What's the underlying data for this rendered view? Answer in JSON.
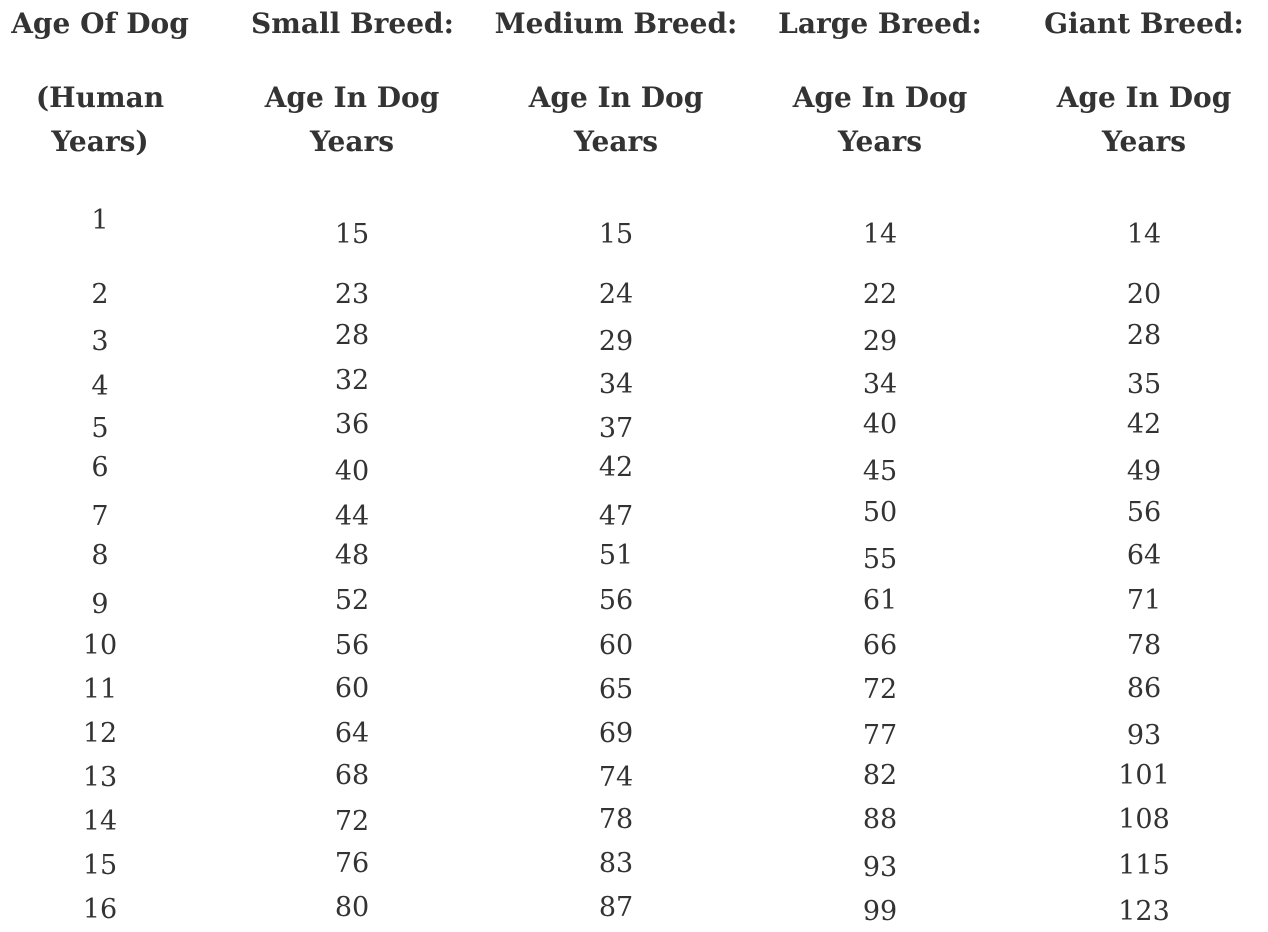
{
  "columns": [
    {
      "title": "Age Of Dog",
      "subtitle": "(Human Years)"
    },
    {
      "title": "Small Breed:",
      "subtitle": "Age In Dog Years"
    },
    {
      "title": "Medium Breed:",
      "subtitle": "Age In Dog Years"
    },
    {
      "title": "Large Breed:",
      "subtitle": "Age In Dog Years"
    },
    {
      "title": "Giant Breed:",
      "subtitle": "Age In Dog Years"
    }
  ],
  "rows": [
    [
      "1",
      "15",
      "15",
      "14",
      "14"
    ],
    [
      "2",
      "23",
      "24",
      "22",
      "20"
    ],
    [
      "3",
      "28",
      "29",
      "29",
      "28"
    ],
    [
      "4",
      "32",
      "34",
      "34",
      "35"
    ],
    [
      "5",
      "36",
      "37",
      "40",
      "42"
    ],
    [
      "6",
      "40",
      "42",
      "45",
      "49"
    ],
    [
      "7",
      "44",
      "47",
      "50",
      "56"
    ],
    [
      "8",
      "48",
      "51",
      "55",
      "64"
    ],
    [
      "9",
      "52",
      "56",
      "61",
      "71"
    ],
    [
      "10",
      "56",
      "60",
      "66",
      "78"
    ],
    [
      "11",
      "60",
      "65",
      "72",
      "86"
    ],
    [
      "12",
      "64",
      "69",
      "77",
      "93"
    ],
    [
      "13",
      "68",
      "74",
      "82",
      "101"
    ],
    [
      "14",
      "72",
      "78",
      "88",
      "108"
    ],
    [
      "15",
      "76",
      "83",
      "93",
      "115"
    ],
    [
      "16",
      "80",
      "87",
      "99",
      "123"
    ]
  ]
}
